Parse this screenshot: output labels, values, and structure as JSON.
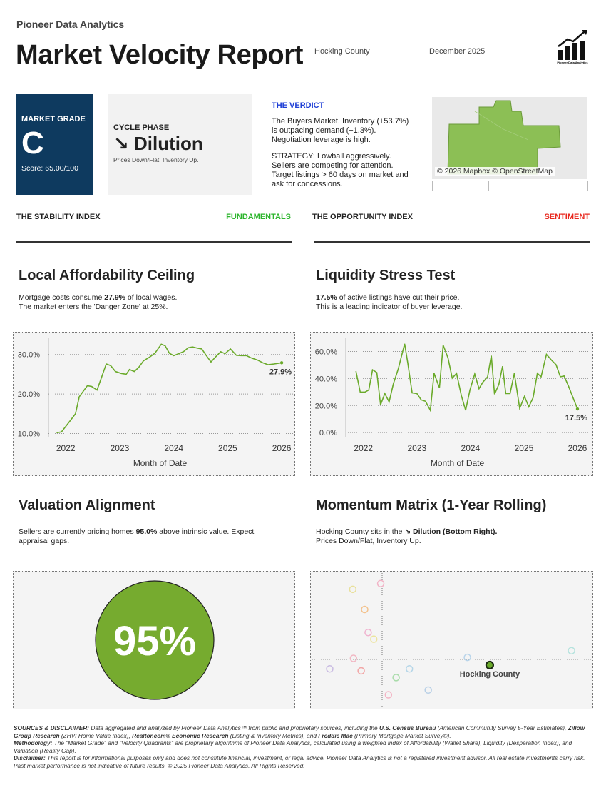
{
  "header": {
    "brand": "Pioneer Data Analytics",
    "title": "Market Velocity Report",
    "location": "Hocking County",
    "date": "December 2025",
    "logo_text": "Pioneer Data Analytics"
  },
  "grade": {
    "label": "MARKET GRADE",
    "letter": "C",
    "score": "Score: 65.00/100"
  },
  "cycle": {
    "label": "CYCLE PHASE",
    "phase": "↘ Dilution",
    "note": "Prices Down/Flat, Inventory Up."
  },
  "verdict": {
    "title": "THE VERDICT",
    "summary": "The Buyers Market. Inventory (+53.7%) is outpacing demand (+1.3%). Negotiation leverage is high.",
    "strategy": "STRATEGY: Lowball aggressively. Sellers are competing for attention. Target listings > 60 days on market and ask for concessions."
  },
  "map": {
    "attribution": "© 2026 Mapbox © OpenStreetMap"
  },
  "indices": {
    "stability": "THE STABILITY INDEX",
    "stability_tag": "FUNDAMENTALS",
    "opportunity": "THE OPPORTUNITY INDEX",
    "opportunity_tag": "SENTIMENT"
  },
  "sections": {
    "affordability": {
      "title": "Local Affordability Ceiling",
      "text": [
        "Mortgage costs consume ",
        "27.9%",
        " of local wages.",
        "The market enters the 'Danger Zone' at 25%."
      ]
    },
    "liquidity": {
      "title": "Liquidity Stress Test",
      "text": [
        "17.5%",
        " of active listings have cut their price.",
        "This is a leading indicator of buyer leverage."
      ]
    },
    "valuation": {
      "title": "Valuation Alignment",
      "text": [
        "Sellers are currently pricing homes ",
        "95.0%",
        " above intrinsic value. Expect appraisal gaps."
      ],
      "gauge_label": "95%"
    },
    "momentum": {
      "title": "Momentum Matrix (1-Year Rolling)",
      "text": [
        "Hocking County sits in the ",
        "↘ Dilution (Bottom Right).",
        "Prices Down/Flat, Inventory Up."
      ]
    }
  },
  "chart_data": [
    {
      "type": "line",
      "color": "#6aaa2a",
      "x_label": "Month of Date",
      "end_label": "27.9%",
      "x": [
        2021.83,
        2021.92,
        2022.08,
        2022.18,
        2022.25,
        2022.4,
        2022.48,
        2022.58,
        2022.75,
        2022.83,
        2022.92,
        2023.03,
        2023.12,
        2023.18,
        2023.27,
        2023.35,
        2023.44,
        2023.55,
        2023.65,
        2023.77,
        2023.84,
        2023.92,
        2024.0,
        2024.09,
        2024.18,
        2024.27,
        2024.35,
        2024.44,
        2024.52,
        2024.6,
        2024.69,
        2024.77,
        2024.87,
        2024.95,
        2025.05,
        2025.16,
        2025.25,
        2025.35,
        2025.44,
        2025.55,
        2025.65,
        2025.75,
        2025.86,
        2026.0
      ],
      "values": [
        10.2,
        10.4,
        13.2,
        15.0,
        19.3,
        22.1,
        21.9,
        21.0,
        27.6,
        27.2,
        25.7,
        25.2,
        25.0,
        26.2,
        25.7,
        26.7,
        28.4,
        29.3,
        30.3,
        32.6,
        32.2,
        30.3,
        29.7,
        30.2,
        30.7,
        31.7,
        31.9,
        31.6,
        31.4,
        29.8,
        28.1,
        29.3,
        30.7,
        30.2,
        31.4,
        29.8,
        29.7,
        29.7,
        29.1,
        28.6,
        27.9,
        27.4,
        27.6,
        27.9
      ],
      "xlim": [
        2021.68,
        2026.21
      ],
      "xticks": [
        2022,
        2023,
        2024,
        2025,
        2026
      ],
      "ylim": [
        9.0,
        34.1
      ],
      "yticks": [
        {
          "value": 10,
          "label": "10.0%"
        },
        {
          "value": 20,
          "label": "20.0%"
        },
        {
          "value": 30,
          "label": "30.0%"
        }
      ],
      "grid": true
    },
    {
      "type": "line",
      "color": "#6aaa2a",
      "x_label": "Month of Date",
      "end_label": "17.5%",
      "x": [
        2021.86,
        2021.94,
        2022.03,
        2022.1,
        2022.17,
        2022.25,
        2022.32,
        2022.4,
        2022.48,
        2022.56,
        2022.65,
        2022.77,
        2022.83,
        2022.91,
        2023.0,
        2023.08,
        2023.16,
        2023.25,
        2023.32,
        2023.42,
        2023.49,
        2023.58,
        2023.66,
        2023.74,
        2023.83,
        2023.91,
        2023.99,
        2024.08,
        2024.16,
        2024.23,
        2024.32,
        2024.39,
        2024.45,
        2024.53,
        2024.6,
        2024.66,
        2024.74,
        2024.82,
        2024.92,
        2025.01,
        2025.09,
        2025.17,
        2025.25,
        2025.32,
        2025.42,
        2025.51,
        2025.6,
        2025.68,
        2025.75,
        2025.83,
        2026.0
      ],
      "values": [
        45.5,
        30.0,
        30.0,
        31.5,
        46.5,
        44.5,
        20.6,
        28.9,
        22.7,
        36.2,
        47.0,
        65.7,
        51.2,
        29.4,
        28.9,
        24.2,
        23.2,
        16.5,
        43.9,
        33.1,
        64.7,
        55.3,
        40.3,
        43.9,
        27.4,
        16.5,
        31.5,
        43.4,
        32.5,
        37.2,
        41.3,
        56.9,
        28.4,
        35.6,
        49.1,
        28.9,
        28.9,
        43.9,
        18.0,
        26.8,
        19.1,
        25.8,
        43.9,
        41.3,
        57.9,
        53.8,
        50.2,
        41.3,
        41.9,
        34.6,
        17.5
      ],
      "xlim": [
        2021.67,
        2026.24
      ],
      "xticks": [
        2022,
        2023,
        2024,
        2025,
        2026
      ],
      "ylim": [
        -3.6,
        69.8
      ],
      "yticks": [
        {
          "value": 0,
          "label": "0.0%"
        },
        {
          "value": 20,
          "label": "20.0%"
        },
        {
          "value": 40,
          "label": "40.0%"
        },
        {
          "value": 60,
          "label": "60.0%"
        }
      ],
      "grid": true
    },
    {
      "type": "scatter",
      "xlim": [
        -10,
        30
      ],
      "ylim": [
        -5,
        9
      ],
      "points": [
        {
          "x": -0.2,
          "y": 7.9,
          "color": "#f2b3c6"
        },
        {
          "x": -4.2,
          "y": 7.3,
          "color": "#e8e09a"
        },
        {
          "x": -2.5,
          "y": 5.2,
          "color": "#f3c28d"
        },
        {
          "x": -2.0,
          "y": 2.8,
          "color": "#f0b3cf"
        },
        {
          "x": -1.2,
          "y": 2.1,
          "color": "#ece49e"
        },
        {
          "x": -4.1,
          "y": 0.1,
          "color": "#f2b8c4"
        },
        {
          "x": -7.5,
          "y": -1.0,
          "color": "#c9bbe2"
        },
        {
          "x": -3.0,
          "y": -1.2,
          "color": "#f2a6a6"
        },
        {
          "x": 2.0,
          "y": -1.9,
          "color": "#a9dcaa"
        },
        {
          "x": 3.9,
          "y": -1.0,
          "color": "#b5d6e8"
        },
        {
          "x": 0.9,
          "y": -3.7,
          "color": "#f3b4c4"
        },
        {
          "x": 6.6,
          "y": -3.2,
          "color": "#b7cfe6"
        },
        {
          "x": 12.2,
          "y": 0.2,
          "color": "#b8d4ea"
        },
        {
          "x": 27.1,
          "y": 0.9,
          "color": "#b6e3de"
        }
      ],
      "highlight": {
        "name": "Hocking County",
        "x": 15.4,
        "y": -0.6,
        "color": "#6aaa2a"
      }
    }
  ],
  "footer": {
    "sources": [
      "SOURCES & DISCLAIMER:",
      " Data aggregated and analyzed by Pioneer Data Analytics™ from public and proprietary sources, including the ",
      "U.S. Census Bureau",
      " (American Community Survey 5-Year Estimates), ",
      "Zillow Group Research",
      " (ZHVI Home Value Index), ",
      "Realtor.com® Economic Research",
      " (Listing & Inventory Metrics), and ",
      "Freddie Mac",
      " (Primary Mortgage Market Survey®)."
    ],
    "methodology": [
      "Methodology:",
      " The \"Market Grade\" and \"Velocity Quadrants\" are proprietary algorithms of Pioneer Data Analytics, calculated using a weighted index of Affordability (Wallet Share), Liquidity (Desperation Index), and Valuation (Reality Gap)."
    ],
    "disclaimer": [
      "Disclaimer:",
      " This report is for informational purposes only and does not constitute financial, investment, or legal advice. Pioneer Data Analytics is not a registered investment advisor. All real estate investments carry risk. Past market performance is not indicative of future results. © 2025 Pioneer Data Analytics. All Rights Reserved."
    ]
  }
}
